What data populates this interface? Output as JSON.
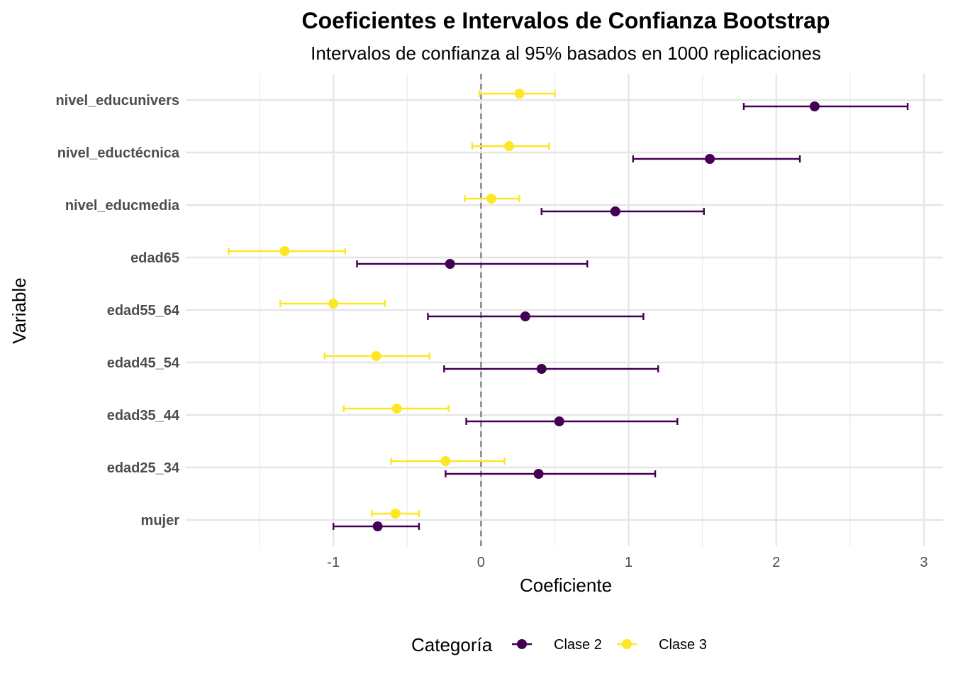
{
  "chart_data": {
    "type": "scatter",
    "title": "Coeficientes e Intervalos de Confianza Bootstrap",
    "subtitle": "Intervalos de confianza al 95% basados en 1000 replicaciones",
    "xlabel": "Coeficiente",
    "ylabel": "Variable",
    "xlim": [
      -2.0,
      3.13
    ],
    "x_ticks": [
      -1,
      0,
      1,
      2,
      3
    ],
    "x_tick_labels": [
      "-1",
      "0",
      "1",
      "2",
      "3"
    ],
    "reference_line_x": 0,
    "grid": true,
    "categories": [
      "mujer",
      "edad25_34",
      "edad35_44",
      "edad45_54",
      "edad55_64",
      "edad65",
      "nivel_educmedia",
      "nivel_eductécnica",
      "nivel_educunivers"
    ],
    "legend": {
      "title": "Categoría",
      "position": "bottom"
    },
    "series": [
      {
        "name": "Clase 2",
        "color": "#440154",
        "estimate": [
          -0.7,
          0.39,
          0.53,
          0.41,
          0.3,
          -0.21,
          0.91,
          1.55,
          2.26
        ],
        "lower": [
          -1.0,
          -0.24,
          -0.1,
          -0.25,
          -0.36,
          -0.84,
          0.41,
          1.03,
          1.78
        ],
        "upper": [
          -0.42,
          1.18,
          1.33,
          1.2,
          1.1,
          0.72,
          1.51,
          2.16,
          2.89
        ]
      },
      {
        "name": "Clase 3",
        "color": "#FDE725",
        "estimate": [
          -0.58,
          -0.24,
          -0.57,
          -0.71,
          -1.0,
          -1.33,
          0.07,
          0.19,
          0.26
        ],
        "lower": [
          -0.74,
          -0.61,
          -0.93,
          -1.06,
          -1.36,
          -1.71,
          -0.11,
          -0.06,
          -0.01
        ],
        "upper": [
          -0.42,
          0.16,
          -0.22,
          -0.35,
          -0.65,
          -0.92,
          0.26,
          0.46,
          0.5
        ]
      }
    ]
  }
}
